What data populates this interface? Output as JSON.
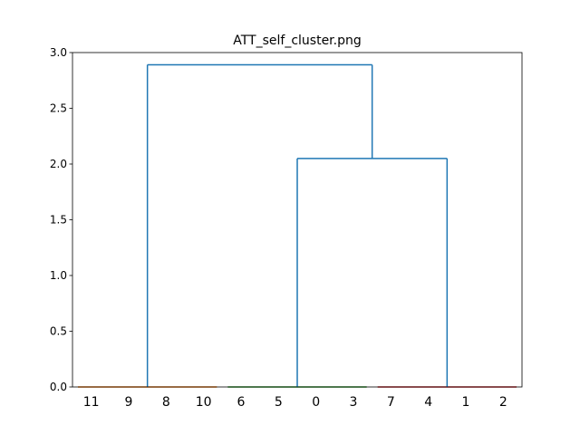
{
  "chart_data": {
    "type": "dendrogram",
    "title": "ATT_self_cluster.png",
    "xlabel": "",
    "ylabel": "",
    "ylim": [
      0,
      3.0
    ],
    "yticks": [
      "0.0",
      "0.5",
      "1.0",
      "1.5",
      "2.0",
      "2.5",
      "3.0"
    ],
    "leaves": [
      "11",
      "9",
      "8",
      "10",
      "6",
      "5",
      "0",
      "3",
      "7",
      "4",
      "1",
      "2"
    ],
    "links": [
      {
        "from": [
          "11",
          "9",
          "8",
          "10"
        ],
        "at": 0.0,
        "color": "#ff7f0e"
      },
      {
        "from": [
          "6",
          "5",
          "0",
          "3"
        ],
        "at": 0.0,
        "color": "#2ca02c"
      },
      {
        "from": [
          "7",
          "4",
          "1",
          "2"
        ],
        "at": 0.0,
        "color": "#d62728"
      },
      {
        "from": [
          "cluster 6,5,0,3",
          "cluster 7,4,1,2"
        ],
        "at": 2.05,
        "color": "#1f77b4"
      },
      {
        "from": [
          "cluster 11,9,8,10",
          "cluster 6,5,0,3,7,4,1,2"
        ],
        "at": 2.89,
        "color": "#1f77b4"
      }
    ],
    "grid": false,
    "legend": "none"
  }
}
